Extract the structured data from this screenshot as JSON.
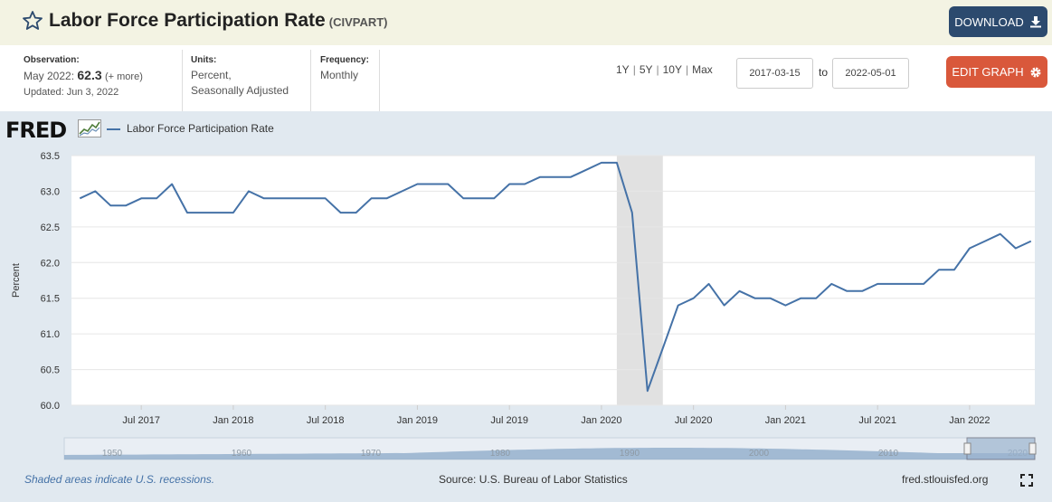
{
  "header": {
    "title": "Labor Force Participation Rate",
    "series_id": "(CIVPART)",
    "download_label": "DOWNLOAD"
  },
  "meta": {
    "observation_label": "Observation:",
    "observation_period": "May 2022:",
    "observation_value": "62.3",
    "observation_more": "(+ more)",
    "updated": "Updated: Jun 3, 2022",
    "units_label": "Units:",
    "units_line1": "Percent,",
    "units_line2": "Seasonally Adjusted",
    "frequency_label": "Frequency:",
    "frequency_value": "Monthly"
  },
  "controls": {
    "range_1y": "1Y",
    "range_5y": "5Y",
    "range_10y": "10Y",
    "range_max": "Max",
    "separator": "|",
    "start_date": "2017-03-15",
    "to_label": "to",
    "end_date": "2022-05-01",
    "edit_label": "EDIT GRAPH"
  },
  "chart_header": {
    "logo": "FRED",
    "legend_label": "Labor Force Participation Rate"
  },
  "footer": {
    "recession_note": "Shaded areas indicate U.S. recessions.",
    "source": "Source: U.S. Bureau of Labor Statistics",
    "site": "fred.stlouisfed.org"
  },
  "colors": {
    "line": "#4572a7",
    "recession": "#e1e1e1",
    "title_bar": "#f3f3e3",
    "download": "#2c4a6e",
    "edit": "#d9583b"
  },
  "chart_data": {
    "type": "line",
    "title": "",
    "xlabel": "",
    "ylabel": "Percent",
    "ylim": [
      60.0,
      63.5
    ],
    "yticks": [
      "63.5",
      "63.0",
      "62.5",
      "62.0",
      "61.5",
      "61.0",
      "60.5",
      "60.0"
    ],
    "xticks": [
      "Jul 2017",
      "Jan 2018",
      "Jul 2018",
      "Jan 2019",
      "Jul 2019",
      "Jan 2020",
      "Jul 2020",
      "Jan 2021",
      "Jul 2021",
      "Jan 2022"
    ],
    "xtick_dates": [
      "2017-07",
      "2018-01",
      "2018-07",
      "2019-01",
      "2019-07",
      "2020-01",
      "2020-07",
      "2021-01",
      "2021-07",
      "2022-01"
    ],
    "x_range": [
      "2017-03",
      "2022-05"
    ],
    "grid": true,
    "legend_position": "top-left",
    "recession": {
      "start": "2020-02",
      "end": "2020-04"
    },
    "navigator_labels": [
      "1950",
      "1960",
      "1970",
      "1980",
      "1990",
      "2000",
      "2010",
      "2020"
    ],
    "series": [
      {
        "name": "Labor Force Participation Rate",
        "x": [
          "2017-03",
          "2017-04",
          "2017-05",
          "2017-06",
          "2017-07",
          "2017-08",
          "2017-09",
          "2017-10",
          "2017-11",
          "2017-12",
          "2018-01",
          "2018-02",
          "2018-03",
          "2018-04",
          "2018-05",
          "2018-06",
          "2018-07",
          "2018-08",
          "2018-09",
          "2018-10",
          "2018-11",
          "2018-12",
          "2019-01",
          "2019-02",
          "2019-03",
          "2019-04",
          "2019-05",
          "2019-06",
          "2019-07",
          "2019-08",
          "2019-09",
          "2019-10",
          "2019-11",
          "2019-12",
          "2020-01",
          "2020-02",
          "2020-03",
          "2020-04",
          "2020-05",
          "2020-06",
          "2020-07",
          "2020-08",
          "2020-09",
          "2020-10",
          "2020-11",
          "2020-12",
          "2021-01",
          "2021-02",
          "2021-03",
          "2021-04",
          "2021-05",
          "2021-06",
          "2021-07",
          "2021-08",
          "2021-09",
          "2021-10",
          "2021-11",
          "2021-12",
          "2022-01",
          "2022-02",
          "2022-03",
          "2022-04",
          "2022-05"
        ],
        "values": [
          62.9,
          63.0,
          62.8,
          62.8,
          62.9,
          62.9,
          63.1,
          62.7,
          62.7,
          62.7,
          62.7,
          63.0,
          62.9,
          62.9,
          62.9,
          62.9,
          62.9,
          62.7,
          62.7,
          62.9,
          62.9,
          63.0,
          63.1,
          63.1,
          63.1,
          62.9,
          62.9,
          62.9,
          63.1,
          63.1,
          63.2,
          63.2,
          63.2,
          63.3,
          63.4,
          63.4,
          62.7,
          60.2,
          60.8,
          61.4,
          61.5,
          61.7,
          61.4,
          61.6,
          61.5,
          61.5,
          61.4,
          61.5,
          61.5,
          61.7,
          61.6,
          61.6,
          61.7,
          61.7,
          61.7,
          61.7,
          61.9,
          61.9,
          62.2,
          62.3,
          62.4,
          62.2,
          62.3
        ]
      }
    ]
  }
}
